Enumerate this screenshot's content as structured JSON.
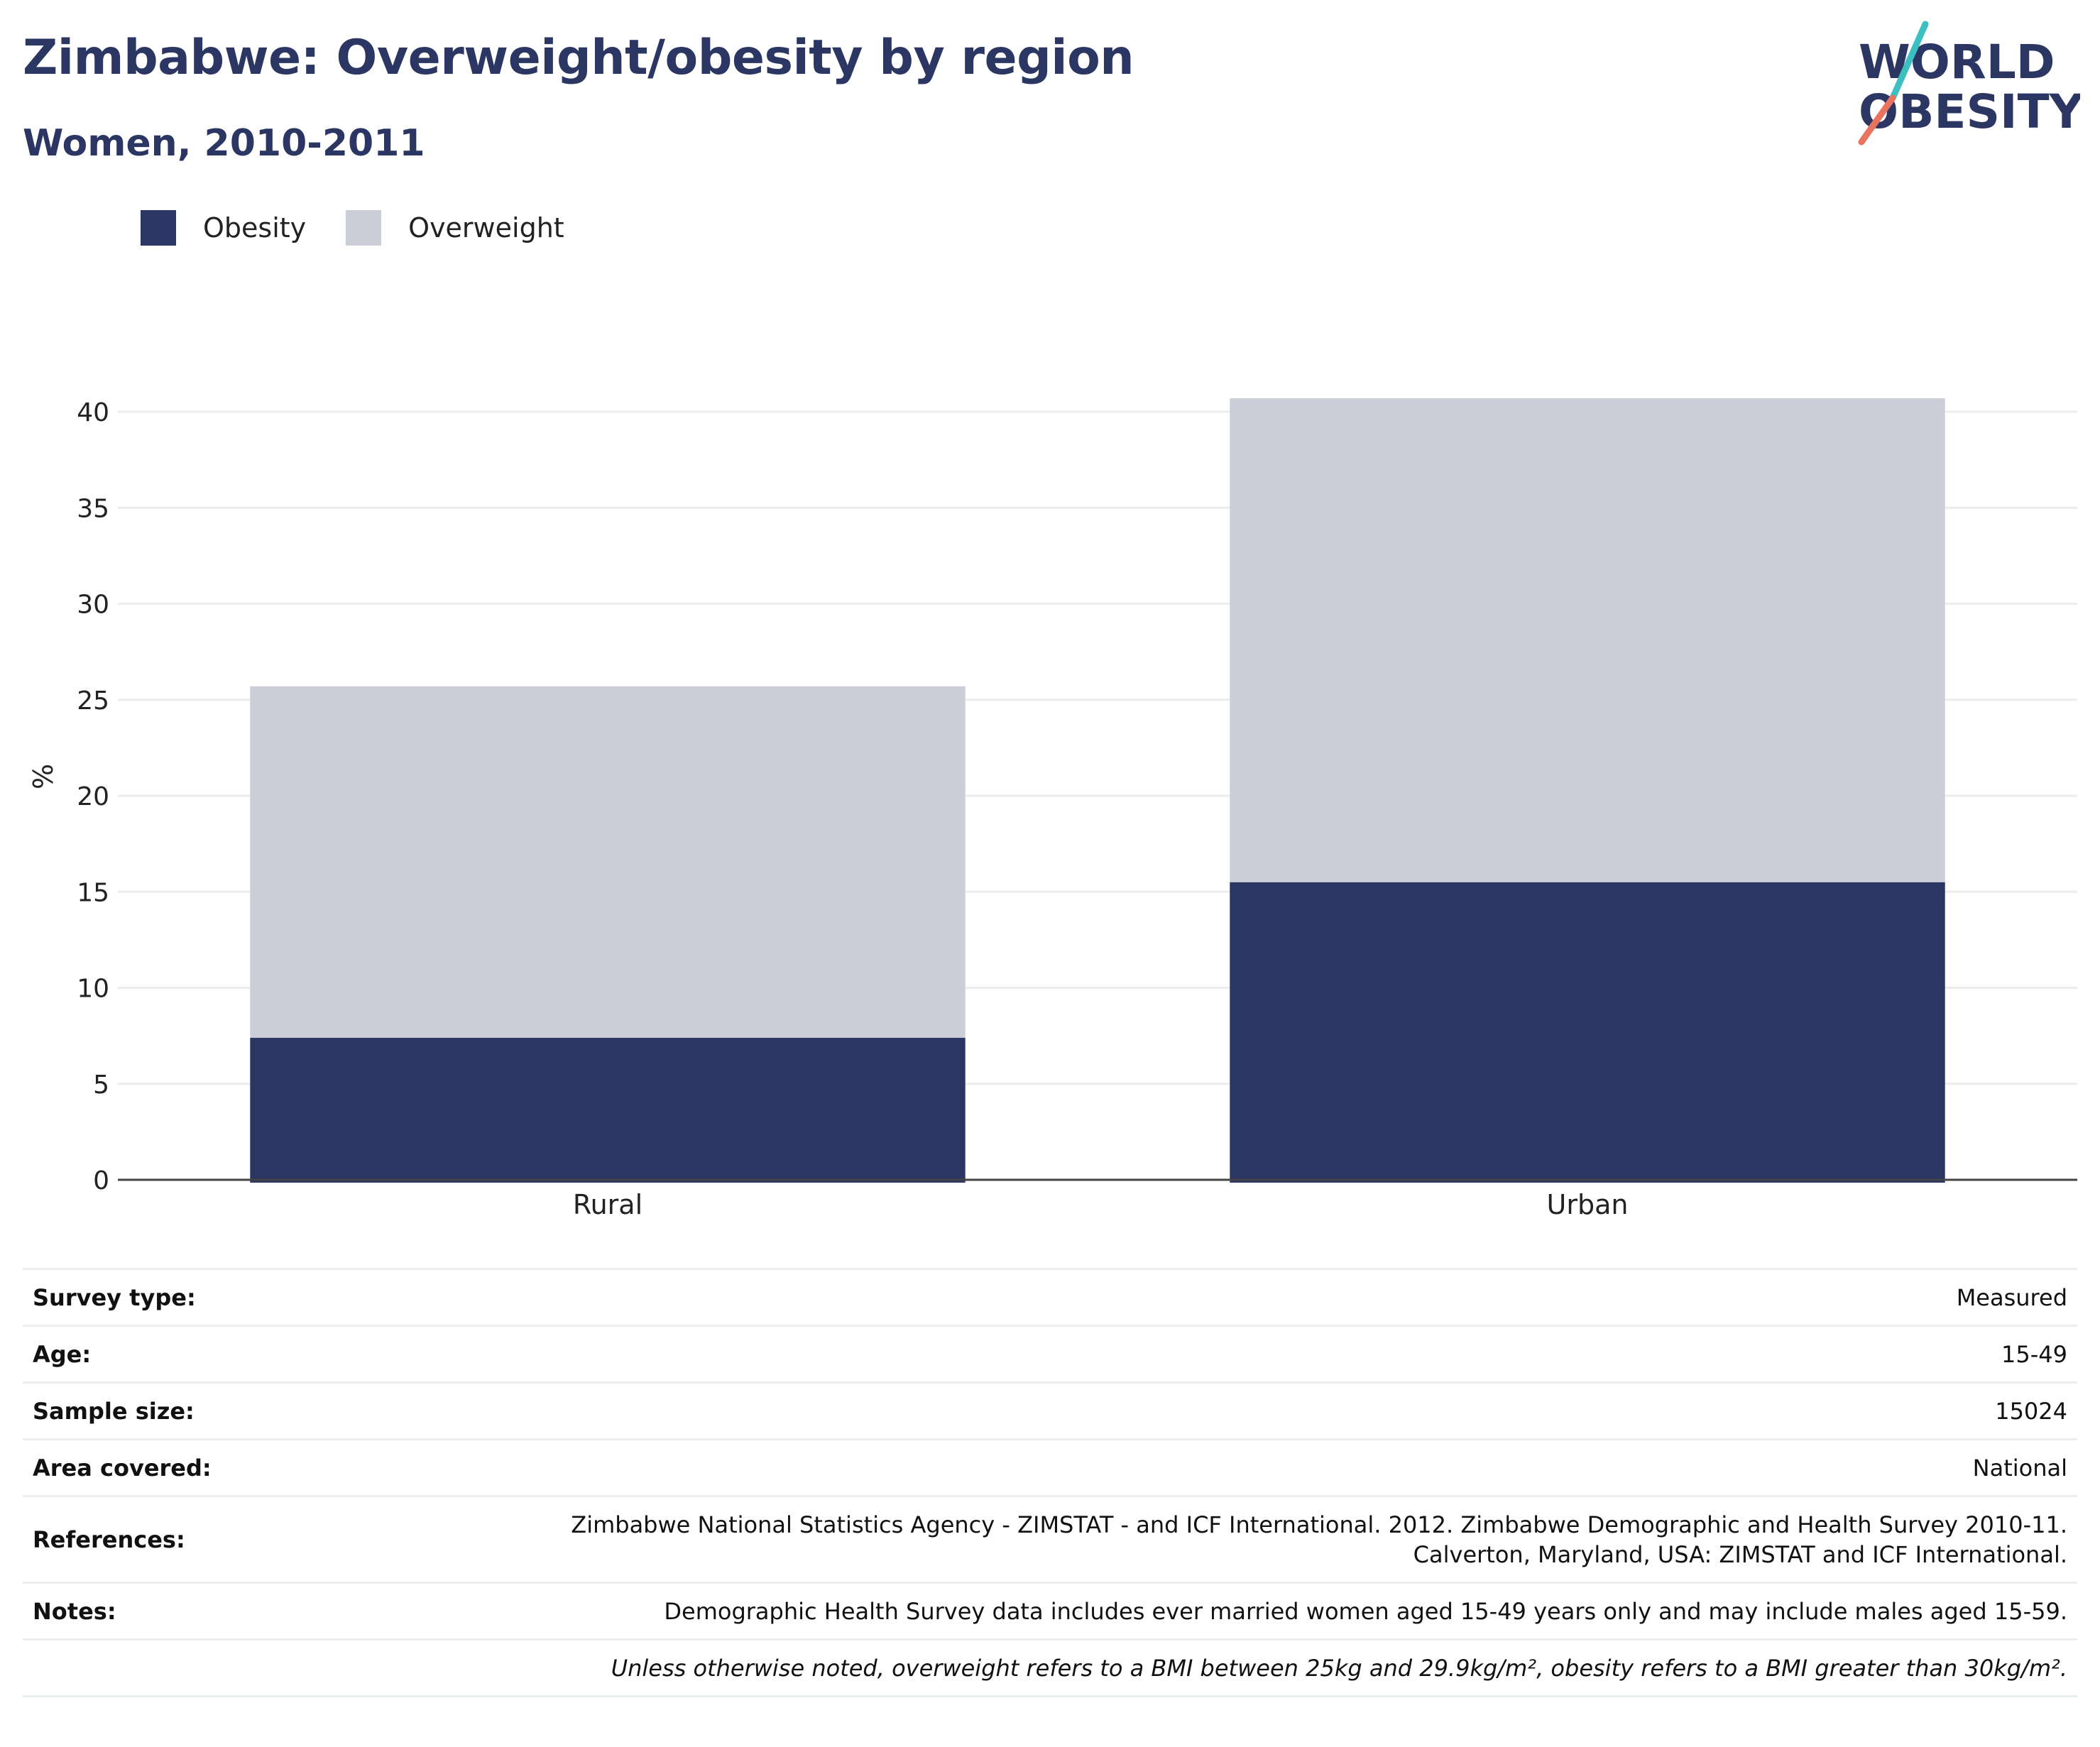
{
  "header": {
    "title": "Zimbabwe: Overweight/obesity by region",
    "subtitle": "Women, 2010-2011"
  },
  "logo": {
    "line1": "WORLD",
    "line2": "OBESITY",
    "colors": {
      "text": "#2b3663",
      "slash_top": "#3cbfc1",
      "slash_bottom": "#e8735f"
    }
  },
  "legend": {
    "items": [
      {
        "label": "Obesity",
        "color": "#2b3663"
      },
      {
        "label": "Overweight",
        "color": "#cbcdd8"
      }
    ]
  },
  "chart_data": {
    "type": "bar",
    "stacked": true,
    "categories": [
      "Rural",
      "Urban"
    ],
    "series": [
      {
        "name": "Obesity",
        "values": [
          7.4,
          15.5
        ],
        "color": "#2b3663"
      },
      {
        "name": "Overweight",
        "values": [
          18.3,
          25.2
        ],
        "color": "#cbcdd8"
      }
    ],
    "ylabel": "%",
    "xlabel": "",
    "ylim": [
      0,
      42
    ],
    "yticks": [
      0,
      5,
      10,
      15,
      20,
      25,
      30,
      35,
      40
    ],
    "grid": true,
    "legend_position": "top-left"
  },
  "info": {
    "survey_type": {
      "label": "Survey type:",
      "value": "Measured"
    },
    "age": {
      "label": "Age:",
      "value": "15-49"
    },
    "sample_size": {
      "label": "Sample size:",
      "value": "15024"
    },
    "area_covered": {
      "label": "Area covered:",
      "value": "National"
    },
    "references": {
      "label": "References:",
      "line1": "Zimbabwe National Statistics Agency - ZIMSTAT - and ICF International. 2012. Zimbabwe Demographic and Health Survey 2010-11.",
      "line2": "Calverton, Maryland, USA: ZIMSTAT and ICF International."
    },
    "notes": {
      "label": "Notes:",
      "value": "Demographic Health Survey data includes ever married women aged 15-49 years only and may include males aged 15-59."
    },
    "disclaimer": "Unless otherwise noted, overweight refers to a BMI between 25kg and 29.9kg/m², obesity refers to a BMI greater than 30kg/m²."
  }
}
